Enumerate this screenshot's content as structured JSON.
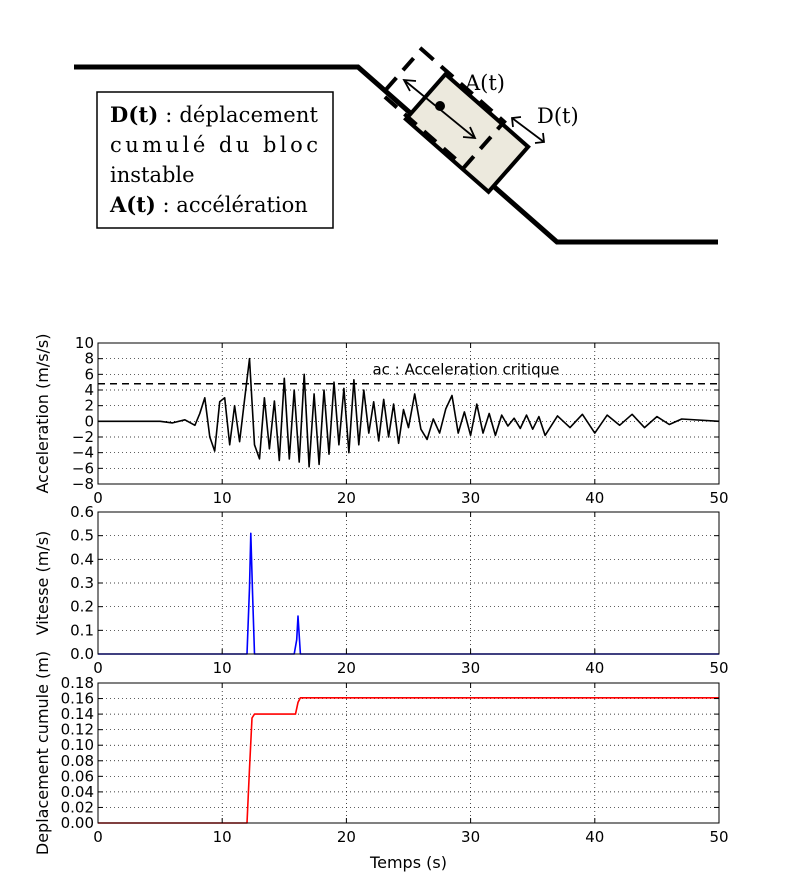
{
  "diagram": {
    "legend_lines": [
      {
        "bold": "D(t)",
        "rest": " : déplacement"
      },
      {
        "bold": "",
        "rest": "cumulé du bloc"
      },
      {
        "bold": "",
        "rest": "instable"
      },
      {
        "bold": "A(t)",
        "rest": " : accélération"
      }
    ],
    "label_acceleration": "A(t)",
    "label_displacement": "D(t)",
    "block_fill": "#ece9dd"
  },
  "chart_data": [
    {
      "type": "line",
      "id": "acceleration",
      "ylabel": "Acceleration (m/s/s)",
      "xlabel": "",
      "xlim": [
        0,
        50
      ],
      "ylim": [
        -8,
        10
      ],
      "xticks": [
        0,
        10,
        20,
        30,
        40,
        50
      ],
      "yticks": [
        -8,
        -6,
        -4,
        -2,
        0,
        2,
        4,
        6,
        8,
        10
      ],
      "tick_decimals": 0,
      "grid": true,
      "color": "#000000",
      "threshold": {
        "value": 4.8,
        "style": "dashed",
        "label": "ac : Acceleration critique"
      },
      "series": [
        {
          "x": [
            0,
            5,
            6,
            7,
            7.8,
            8.2,
            8.6,
            9.0,
            9.4,
            9.8,
            10.2,
            10.6,
            11.0,
            11.4,
            11.8,
            12.2,
            12.6,
            13.0,
            13.4,
            13.8,
            14.2,
            14.6,
            15.0,
            15.4,
            15.8,
            16.2,
            16.6,
            17.0,
            17.4,
            17.8,
            18.2,
            18.6,
            19.0,
            19.4,
            19.8,
            20.2,
            20.6,
            21.0,
            21.4,
            21.8,
            22.2,
            22.6,
            23.0,
            23.4,
            23.8,
            24.2,
            24.6,
            25.0,
            25.5,
            26.0,
            26.5,
            27.0,
            27.5,
            28.0,
            28.5,
            29.0,
            29.5,
            30.0,
            30.5,
            31.0,
            31.5,
            32.0,
            32.5,
            33.0,
            33.5,
            34.0,
            34.5,
            35.0,
            35.5,
            36.0,
            37.0,
            38.0,
            39.0,
            40.0,
            41.0,
            42.0,
            43.0,
            44.0,
            45.0,
            46.0,
            47.0,
            50.0
          ],
          "y": [
            0,
            0,
            -0.2,
            0.2,
            -0.5,
            1.0,
            3.0,
            -2.0,
            -3.8,
            2.5,
            3.0,
            -3.0,
            2.0,
            -2.6,
            2.8,
            8.0,
            -3.0,
            -4.8,
            3.0,
            -3.5,
            2.6,
            -5.0,
            5.5,
            -4.8,
            4.0,
            -5.2,
            6.0,
            -5.8,
            3.5,
            -5.5,
            4.0,
            -4.2,
            5.0,
            -3.0,
            4.2,
            -4.0,
            5.3,
            -3.0,
            4.0,
            -1.5,
            2.5,
            -2.5,
            2.8,
            -2.0,
            2.2,
            -2.8,
            1.5,
            -0.8,
            3.5,
            -1.0,
            -2.3,
            0.3,
            -1.5,
            1.6,
            3.3,
            -1.5,
            1.2,
            -1.8,
            2.2,
            -1.5,
            1.0,
            -1.8,
            0.8,
            -0.6,
            0.4,
            -0.9,
            0.8,
            -1.0,
            0.6,
            -1.8,
            0.7,
            -0.8,
            0.9,
            -1.5,
            0.8,
            -0.5,
            0.9,
            -0.8,
            0.6,
            -0.4,
            0.3,
            0
          ]
        }
      ]
    },
    {
      "type": "line",
      "id": "vitesse",
      "ylabel": "Vitesse (m/s)",
      "xlabel": "",
      "xlim": [
        0,
        50
      ],
      "ylim": [
        0,
        0.6
      ],
      "xticks": [
        0,
        10,
        20,
        30,
        40,
        50
      ],
      "yticks": [
        0.0,
        0.1,
        0.2,
        0.3,
        0.4,
        0.5,
        0.6
      ],
      "tick_decimals": 1,
      "grid": true,
      "color": "#0000ff",
      "series": [
        {
          "x": [
            0,
            12.0,
            12.2,
            12.3,
            12.45,
            12.6,
            15.8,
            16.0,
            16.1,
            16.3,
            50
          ],
          "y": [
            0,
            0,
            0.28,
            0.51,
            0.25,
            0,
            0,
            0.06,
            0.16,
            0,
            0
          ]
        }
      ]
    },
    {
      "type": "line",
      "id": "deplacement",
      "ylabel": "Deplacement cumule (m)",
      "xlabel": "Temps (s)",
      "xlim": [
        0,
        50
      ],
      "ylim": [
        0,
        0.18
      ],
      "xticks": [
        0,
        10,
        20,
        30,
        40,
        50
      ],
      "yticks": [
        0.0,
        0.02,
        0.04,
        0.06,
        0.08,
        0.1,
        0.12,
        0.14,
        0.16,
        0.18
      ],
      "tick_decimals": 2,
      "grid": true,
      "color": "#ff0000",
      "series": [
        {
          "x": [
            0,
            12.0,
            12.2,
            12.4,
            12.6,
            15.9,
            16.1,
            16.3,
            50
          ],
          "y": [
            0,
            0,
            0.07,
            0.135,
            0.14,
            0.14,
            0.155,
            0.161,
            0.161
          ]
        }
      ]
    }
  ]
}
